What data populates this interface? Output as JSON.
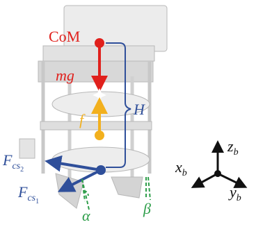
{
  "labels": {
    "com": "CoM",
    "mg": "mg",
    "f": "f",
    "h": "H",
    "alpha": "α",
    "beta": "β"
  },
  "forces": [
    {
      "base": "F",
      "sub": "cs",
      "index": "2"
    },
    {
      "base": "F",
      "sub": "cs",
      "index": "1"
    }
  ],
  "axes": [
    {
      "base": "z",
      "sub": "b"
    },
    {
      "base": "x",
      "sub": "b"
    },
    {
      "base": "y",
      "sub": "b"
    }
  ]
}
